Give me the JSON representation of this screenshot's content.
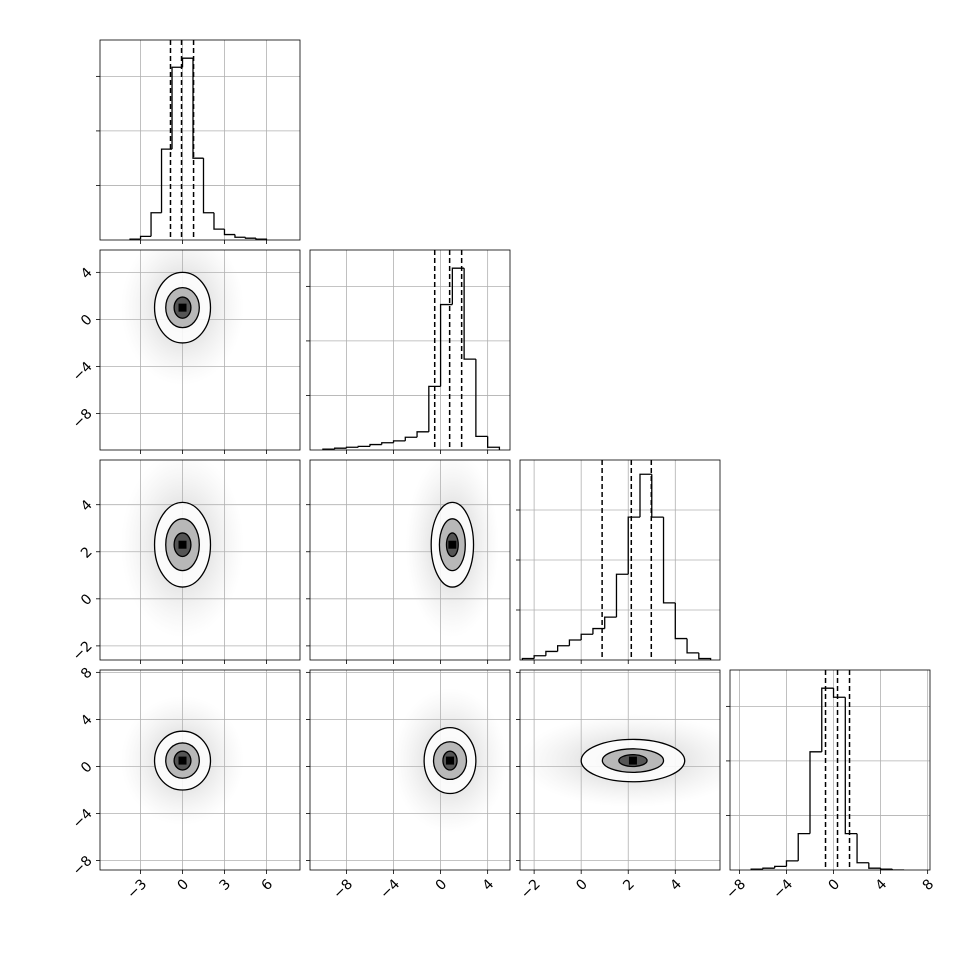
{
  "chart_data": {
    "type": "corner",
    "params": [
      {
        "lim": [
          -5.9,
          8.4
        ],
        "ticks": [
          {
            "value": -3,
            "label": "−3"
          },
          0,
          3,
          6
        ]
      },
      {
        "lim": [
          -11.1,
          5.9
        ],
        "ticks": [
          {
            "value": -8,
            "label": "−8"
          },
          {
            "value": -4,
            "label": "−4"
          },
          0,
          4
        ]
      },
      {
        "lim": [
          -2.6,
          5.9
        ],
        "ticks": [
          {
            "value": -2,
            "label": "−2"
          },
          0,
          2,
          4
        ]
      },
      {
        "lim": [
          -8.8,
          8.2
        ],
        "ticks": [
          {
            "value": -8,
            "label": "−8"
          },
          {
            "value": -4,
            "label": "−4"
          },
          0,
          4,
          8
        ]
      }
    ],
    "hists": [
      {
        "bins": [
          -3.75,
          -3,
          -2.25,
          -1.5,
          -0.75,
          0,
          0.75,
          1.5,
          2.25,
          3,
          3.75,
          4.5,
          5.25,
          6
        ],
        "counts": [
          1,
          4,
          30,
          100,
          190,
          200,
          90,
          30,
          12,
          6,
          3,
          2,
          1
        ],
        "ylim": [
          0,
          220
        ],
        "yticks": [
          60,
          120,
          180
        ],
        "quantiles": [
          -0.86,
          -0.07,
          0.79
        ]
      },
      {
        "bins": [
          -10,
          -9,
          -8,
          -7,
          -6,
          -5,
          -4,
          -3,
          -2,
          -1,
          0,
          1,
          2,
          3,
          4,
          5
        ],
        "counts": [
          1,
          2,
          3,
          4,
          6,
          8,
          10,
          14,
          20,
          70,
          160,
          200,
          100,
          15,
          3
        ],
        "ylim": [
          0,
          220
        ],
        "yticks": [
          60,
          120,
          180
        ],
        "quantiles": [
          -0.5,
          0.77,
          1.79
        ]
      },
      {
        "bins": [
          -2.5,
          -2,
          -1.5,
          -1,
          -0.5,
          0,
          0.5,
          1,
          1.5,
          2,
          2.5,
          3,
          3.5,
          4,
          4.5,
          5,
          5.5
        ],
        "counts": [
          1,
          3,
          6,
          10,
          14,
          18,
          22,
          30,
          60,
          100,
          130,
          100,
          40,
          15,
          5,
          1
        ],
        "ylim": [
          0,
          140
        ],
        "yticks": [
          35,
          70,
          105
        ],
        "quantiles": [
          0.89,
          2.13,
          2.98
        ]
      },
      {
        "bins": [
          -7,
          -6,
          -5,
          -4,
          -3,
          -2,
          -1,
          0,
          1,
          2,
          3,
          4,
          5,
          6
        ],
        "counts": [
          1,
          2,
          4,
          10,
          40,
          130,
          200,
          190,
          40,
          8,
          2,
          1,
          0
        ],
        "ylim": [
          0,
          220
        ],
        "yticks": [
          60,
          120,
          180
        ],
        "quantiles": [
          -0.68,
          0.34,
          1.36
        ]
      }
    ],
    "pairs": [
      {
        "x": 0,
        "y": 1,
        "center": [
          0,
          1
        ],
        "contours": [
          [
            2,
            3
          ],
          [
            1.2,
            1.7
          ],
          [
            0.6,
            0.9
          ]
        ]
      },
      {
        "x": 0,
        "y": 2,
        "center": [
          0,
          2.3
        ],
        "contours": [
          [
            2,
            1.8
          ],
          [
            1.2,
            1.1
          ],
          [
            0.6,
            0.5
          ]
        ]
      },
      {
        "x": 1,
        "y": 2,
        "center": [
          1,
          2.3
        ],
        "contours": [
          [
            1.8,
            1.8
          ],
          [
            1.1,
            1.1
          ],
          [
            0.5,
            0.5
          ]
        ]
      },
      {
        "x": 0,
        "y": 3,
        "center": [
          0,
          0.5
        ],
        "contours": [
          [
            2,
            2.5
          ],
          [
            1.2,
            1.5
          ],
          [
            0.6,
            0.8
          ]
        ]
      },
      {
        "x": 1,
        "y": 3,
        "center": [
          0.8,
          0.5
        ],
        "contours": [
          [
            2.2,
            2.8
          ],
          [
            1.4,
            1.6
          ],
          [
            0.6,
            0.8
          ]
        ]
      },
      {
        "x": 2,
        "y": 3,
        "center": [
          2.2,
          0.5
        ],
        "contours": [
          [
            2.2,
            1.8
          ],
          [
            1.3,
            1
          ],
          [
            0.6,
            0.5
          ]
        ]
      }
    ],
    "grid": true
  }
}
